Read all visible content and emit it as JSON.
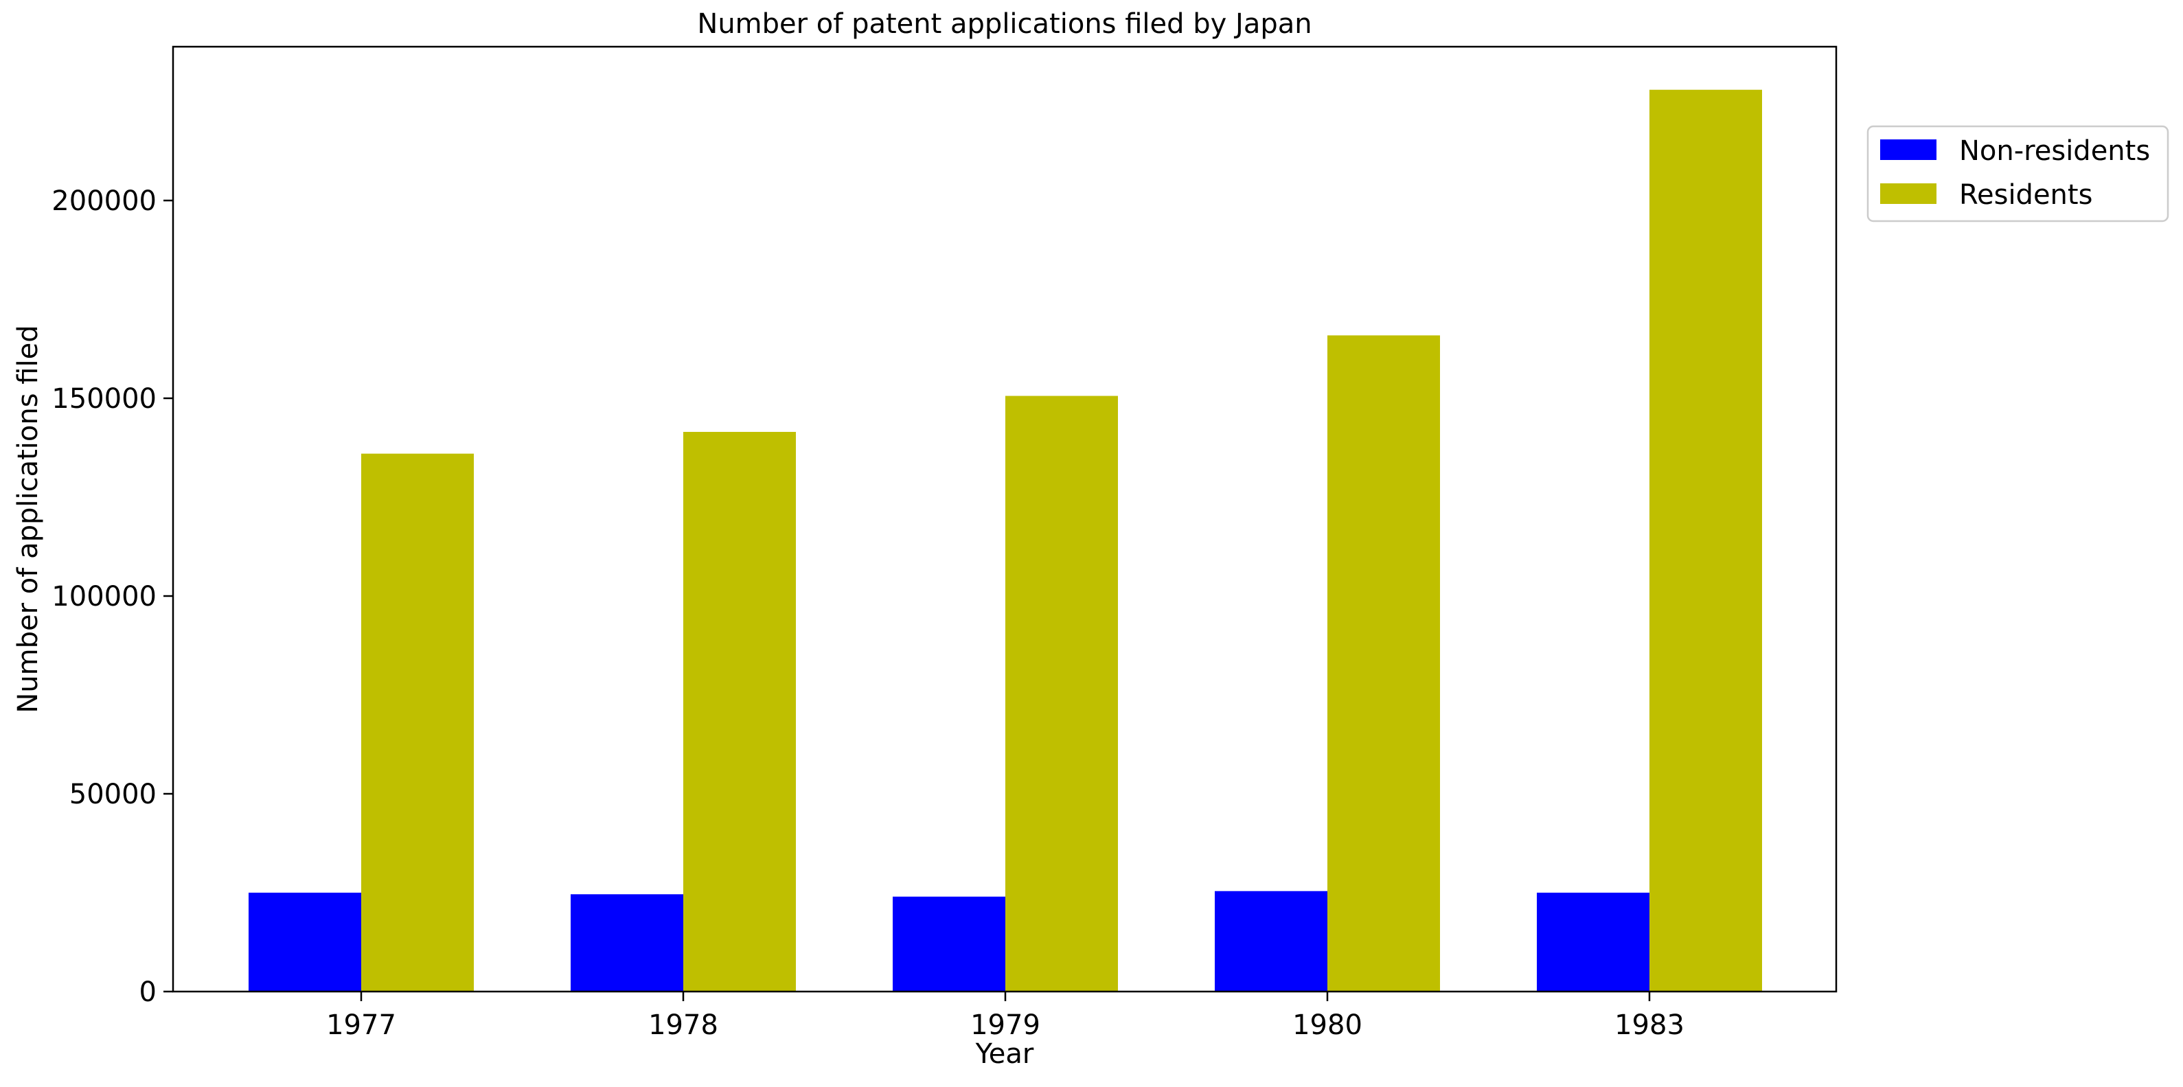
{
  "chart_data": {
    "type": "bar",
    "title": "Number of patent applications filed by Japan",
    "xlabel": "Year",
    "ylabel": "Number of applications filed",
    "categories": [
      "1977",
      "1978",
      "1979",
      "1980",
      "1983"
    ],
    "series": [
      {
        "name": "Non-residents",
        "color": "#0000ff",
        "values": [
          25000,
          24600,
          24000,
          25400,
          25000
        ]
      },
      {
        "name": "Residents",
        "color": "#bfbf00",
        "values": [
          136000,
          141500,
          150600,
          165900,
          228000
        ]
      }
    ],
    "ylim": [
      0,
      240000
    ],
    "yticks": [
      "0",
      "50000",
      "100000",
      "150000",
      "200000"
    ],
    "grid": false,
    "legend_position": "outside-top-right"
  }
}
